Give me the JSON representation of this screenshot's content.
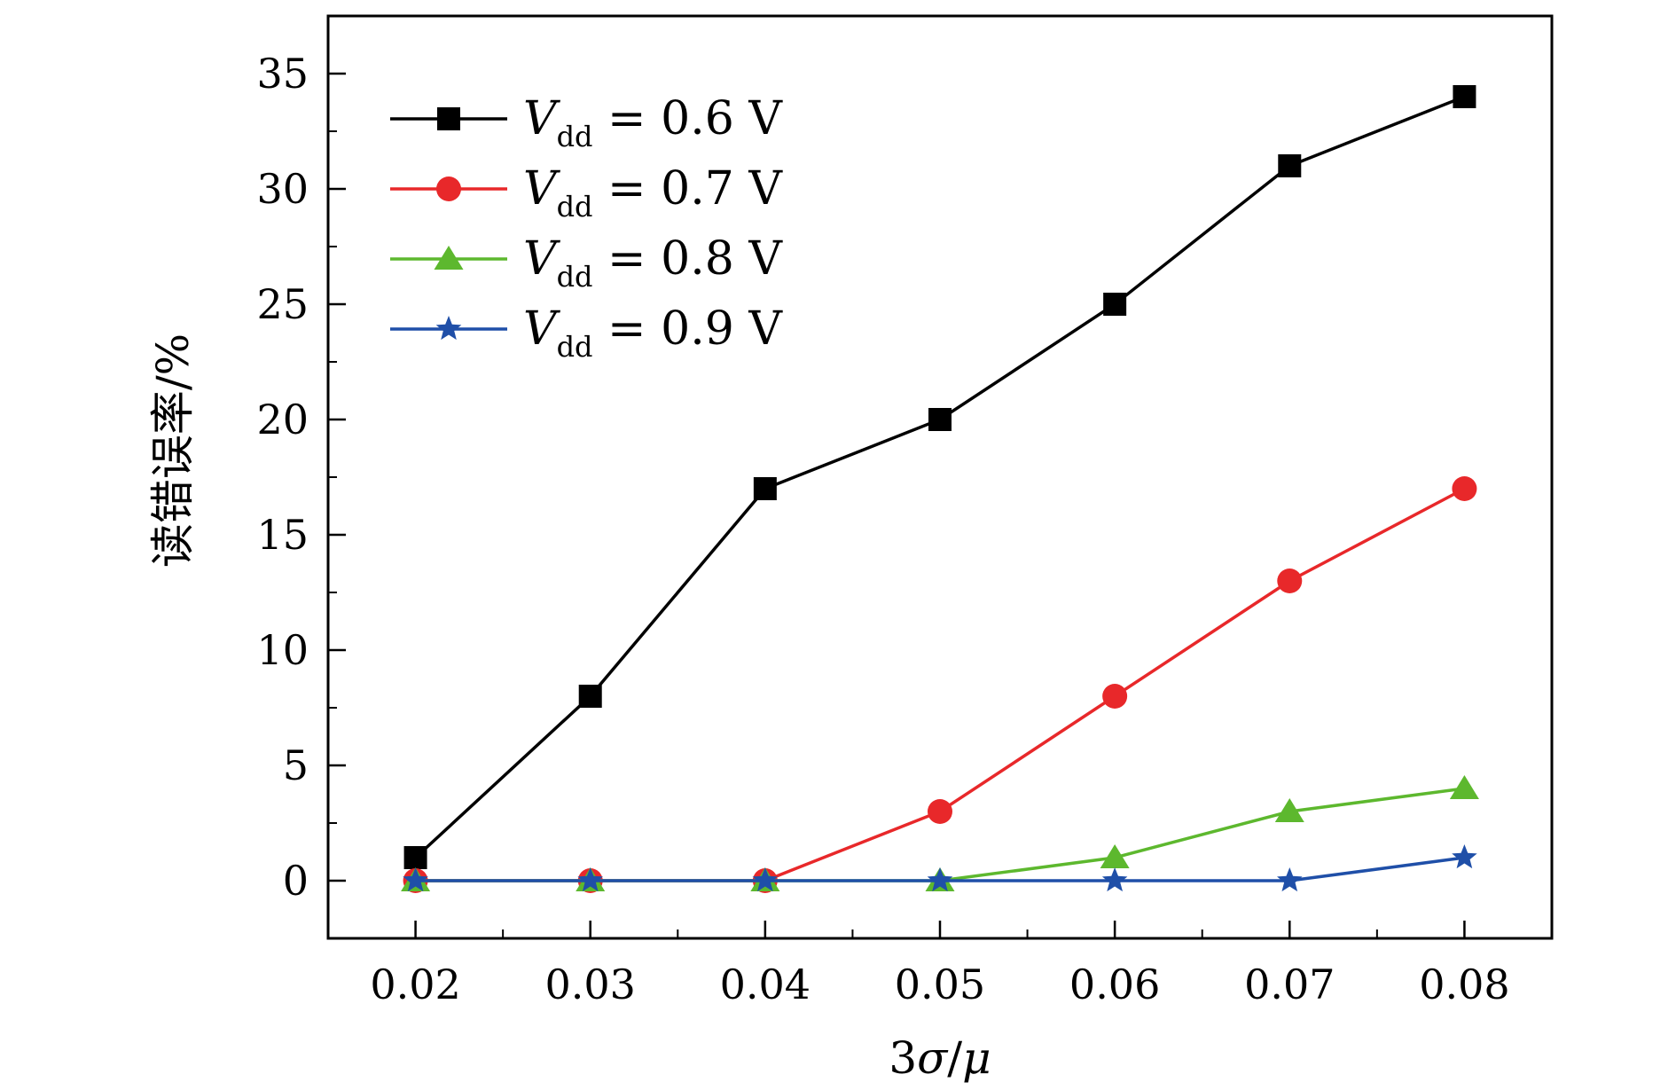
{
  "chart_data": {
    "type": "line",
    "title": "",
    "xlabel_parts": [
      "3",
      "σ",
      "/",
      "μ"
    ],
    "ylabel": "读错误率/%",
    "x": [
      0.02,
      0.03,
      0.04,
      0.05,
      0.06,
      0.07,
      0.08
    ],
    "x_tick_labels": [
      "0.02",
      "0.03",
      "0.04",
      "0.05",
      "0.06",
      "0.07",
      "0.08"
    ],
    "xlim": [
      0.015,
      0.085
    ],
    "ylim": [
      -2.5,
      37.5
    ],
    "y_ticks": [
      0,
      5,
      10,
      15,
      20,
      25,
      30,
      35
    ],
    "y_tick_labels": [
      "0",
      "5",
      "10",
      "15",
      "20",
      "25",
      "30",
      "35"
    ],
    "legend_position": "top-left",
    "series": [
      {
        "name": "V_dd = 0.6 V",
        "label_main": "V",
        "label_sub": "dd",
        "label_rest": " = 0.6 V",
        "color": "#000000",
        "marker": "square",
        "values": [
          1,
          8,
          17,
          20,
          25,
          31,
          34
        ]
      },
      {
        "name": "V_dd = 0.7 V",
        "label_main": "V",
        "label_sub": "dd",
        "label_rest": " = 0.7 V",
        "color": "#e8282a",
        "marker": "circle",
        "values": [
          0,
          0,
          0,
          3,
          8,
          13,
          17
        ]
      },
      {
        "name": "V_dd = 0.8 V",
        "label_main": "V",
        "label_sub": "dd",
        "label_rest": " = 0.8 V",
        "color": "#5db82e",
        "marker": "triangle",
        "values": [
          0,
          0,
          0,
          0,
          1,
          3,
          4
        ]
      },
      {
        "name": "V_dd = 0.9 V",
        "label_main": "V",
        "label_sub": "dd",
        "label_rest": " = 0.9 V",
        "color": "#1f4fa8",
        "marker": "star",
        "values": [
          0,
          0,
          0,
          0,
          0,
          0,
          1
        ]
      }
    ]
  }
}
